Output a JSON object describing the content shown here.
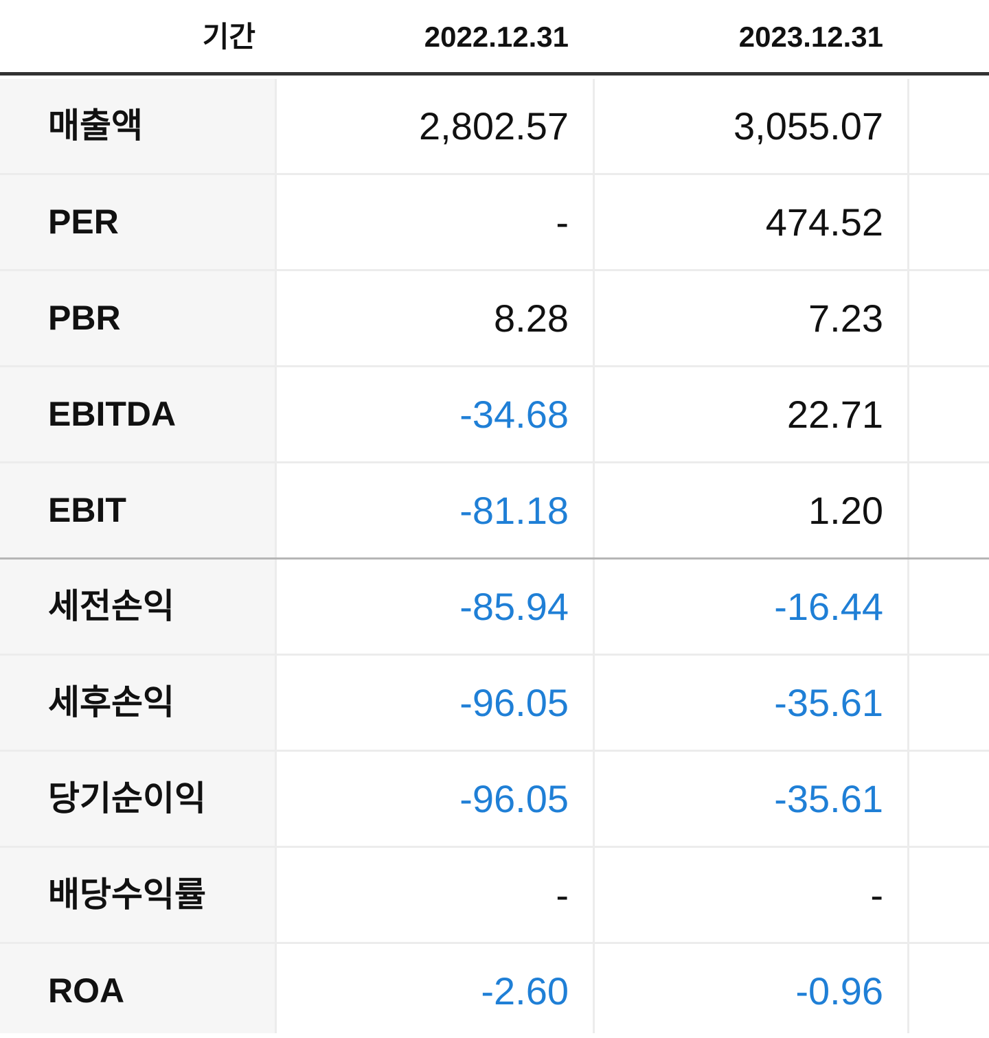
{
  "header": {
    "label": "기간",
    "col1": "2022.12.31",
    "col2": "2023.12.31"
  },
  "colors": {
    "negative": "#1f7fd6",
    "normal": "#111111"
  },
  "rows": [
    {
      "label": "매출액",
      "v1": "2,802.57",
      "v2": "3,055.07"
    },
    {
      "label": "PER",
      "v1": "-",
      "v2": "474.52"
    },
    {
      "label": "PBR",
      "v1": "8.28",
      "v2": "7.23"
    },
    {
      "label": "EBITDA",
      "v1": "-34.68",
      "v2": "22.71"
    },
    {
      "label": "EBIT",
      "v1": "-81.18",
      "v2": "1.20"
    },
    {
      "label": "세전손익",
      "v1": "-85.94",
      "v2": "-16.44"
    },
    {
      "label": "세후손익",
      "v1": "-96.05",
      "v2": "-35.61"
    },
    {
      "label": "당기순이익",
      "v1": "-96.05",
      "v2": "-35.61"
    },
    {
      "label": "배당수익률",
      "v1": "-",
      "v2": "-"
    },
    {
      "label": "ROA",
      "v1": "-2.60",
      "v2": "-0.96"
    }
  ]
}
